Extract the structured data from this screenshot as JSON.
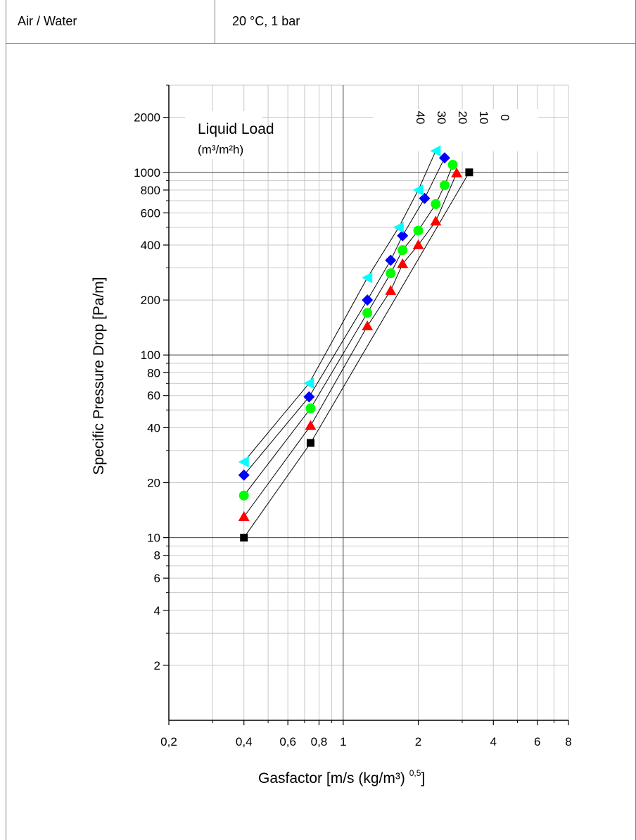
{
  "header": {
    "medium": "Air / Water",
    "conditions": "20 °C, 1 bar"
  },
  "chart_data": {
    "type": "scatter",
    "xscale": "log",
    "yscale": "log",
    "xlim": [
      0.2,
      8
    ],
    "ylim": [
      1,
      3000
    ],
    "grid": true,
    "xlabel": "Gasfactor [m/s (kg/m³) ",
    "xlabel_exp": "0,5",
    "xlabel_end": "]",
    "ylabel": "Specific Pressure Drop [Pa/m]",
    "xticks": [
      {
        "v": 0.2,
        "label": "0,2"
      },
      {
        "v": 0.4,
        "label": "0,4"
      },
      {
        "v": 0.6,
        "label": "0,6"
      },
      {
        "v": 0.8,
        "label": "0,8"
      },
      {
        "v": 1,
        "label": "1"
      },
      {
        "v": 2,
        "label": "2"
      },
      {
        "v": 4,
        "label": "4"
      },
      {
        "v": 6,
        "label": "6"
      },
      {
        "v": 8,
        "label": "8"
      }
    ],
    "yticks": [
      {
        "v": 2,
        "label": "2"
      },
      {
        "v": 4,
        "label": "4"
      },
      {
        "v": 6,
        "label": "6"
      },
      {
        "v": 8,
        "label": "8"
      },
      {
        "v": 10,
        "label": "10"
      },
      {
        "v": 20,
        "label": "20"
      },
      {
        "v": 40,
        "label": "40"
      },
      {
        "v": 60,
        "label": "60"
      },
      {
        "v": 80,
        "label": "80"
      },
      {
        "v": 100,
        "label": "100"
      },
      {
        "v": 200,
        "label": "200"
      },
      {
        "v": 400,
        "label": "400"
      },
      {
        "v": 600,
        "label": "600"
      },
      {
        "v": 800,
        "label": "800"
      },
      {
        "v": 1000,
        "label": "1000"
      },
      {
        "v": 2000,
        "label": "2000"
      }
    ],
    "minor_x": [
      0.3,
      0.5,
      0.7,
      0.9,
      3,
      5,
      7
    ],
    "minor_y": [
      3,
      5,
      7,
      9,
      30,
      50,
      70,
      90,
      300,
      500,
      700,
      900,
      3000
    ],
    "major_grid_x": [
      1
    ],
    "major_grid_y": [
      10,
      100,
      1000
    ],
    "legend_title_line1": "Liquid Load",
    "legend_title_line2": "(m³/m²h)",
    "series": [
      {
        "name": "0",
        "color": "#000000",
        "marker": "square",
        "x": [
          0.4,
          0.74,
          3.2
        ],
        "y": [
          10,
          33,
          1000
        ]
      },
      {
        "name": "10",
        "color": "#ff0000",
        "marker": "triangle-up",
        "x": [
          0.4,
          0.74,
          1.25,
          1.55,
          1.73,
          2.0,
          2.35,
          2.85
        ],
        "y": [
          13,
          41,
          144,
          225,
          315,
          400,
          540,
          990
        ]
      },
      {
        "name": "20",
        "color": "#00ff00",
        "marker": "circle",
        "x": [
          0.4,
          0.74,
          1.25,
          1.55,
          1.73,
          2.0,
          2.35,
          2.55,
          2.75
        ],
        "y": [
          17,
          51,
          170,
          280,
          375,
          480,
          670,
          850,
          1100
        ]
      },
      {
        "name": "30",
        "color": "#0000ff",
        "marker": "diamond",
        "x": [
          0.4,
          0.73,
          1.25,
          1.55,
          1.73,
          2.12,
          2.55
        ],
        "y": [
          22,
          59,
          200,
          330,
          450,
          720,
          1200
        ]
      },
      {
        "name": "40",
        "color": "#00ffff",
        "marker": "triangle-left",
        "x": [
          0.4,
          0.73,
          1.25,
          1.67,
          2.0,
          2.35
        ],
        "y": [
          26,
          70,
          265,
          500,
          800,
          1310
        ]
      }
    ]
  }
}
